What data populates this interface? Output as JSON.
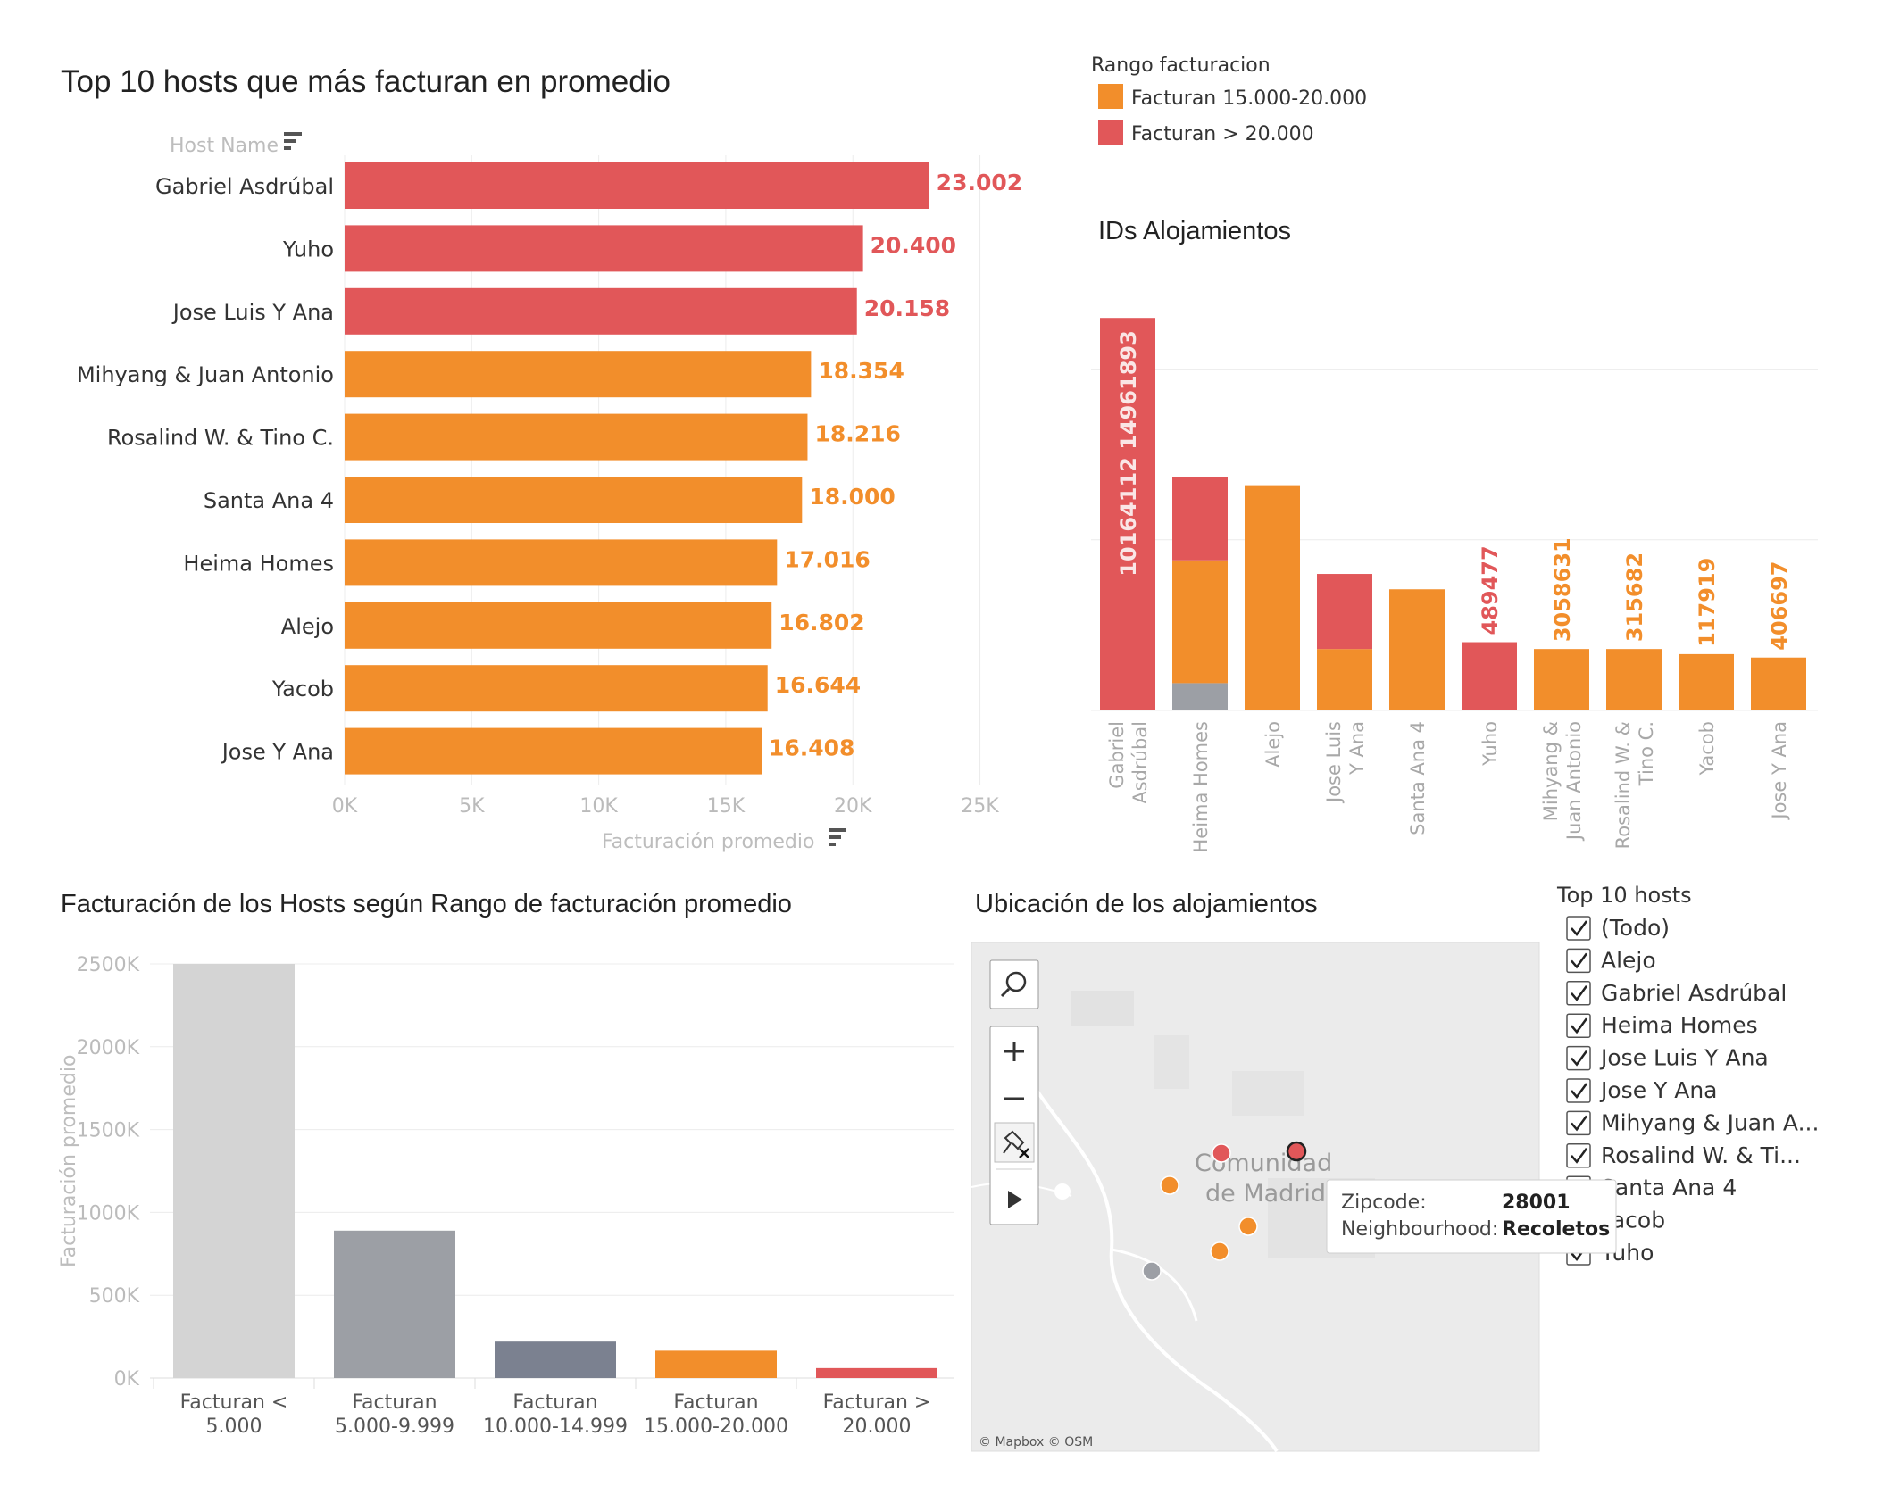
{
  "colors": {
    "range_15_20": "#f28e2b",
    "range_gt20": "#e15759",
    "range_lt5": "#d4d4d4",
    "range_5_10": "#9c9fa5",
    "range_10_15": "#7b8190"
  },
  "top_hosts": {
    "title": "Top 10 hosts que más facturan en promedio",
    "dim_label": "Host Name",
    "measure_label": "Facturación promedio",
    "sort_icon": "sort-icon"
  },
  "legend": {
    "title": "Rango facturacion",
    "items": [
      {
        "label": "Facturan 15.000-20.000",
        "color": "#f28e2b"
      },
      {
        "label": "Facturan > 20.000",
        "color": "#e15759"
      }
    ]
  },
  "ids_chart": {
    "title": "IDs Alojamientos"
  },
  "range_chart": {
    "title": "Facturación de los Hosts según Rango de facturación promedio"
  },
  "map": {
    "title": "Ubicación de los alojamientos",
    "city_line1": "Comunidad",
    "city_line2": "de Madrid",
    "attribution": "© Mapbox © OSM",
    "tooltip": {
      "k1": "Zipcode:",
      "v1": "28001",
      "k2": "Neighbourhood:",
      "v2": "Recoletos"
    },
    "icons": [
      "search-icon",
      "zoom-in-icon",
      "zoom-out-icon",
      "pin-clear-icon",
      "play-icon"
    ]
  },
  "filter": {
    "title": "Top 10 hosts",
    "items": [
      "(Todo)",
      "Alejo",
      "Gabriel Asdrúbal",
      "Heima Homes",
      "Jose Luis Y Ana",
      "Jose Y Ana",
      "Mihyang & Juan A...",
      "Rosalind W.  & Ti...",
      "Santa Ana 4",
      "Yacob",
      "Yuho"
    ]
  },
  "chart_data": [
    {
      "type": "bar",
      "orientation": "horizontal",
      "title": "Top 10 hosts que más facturan en promedio",
      "ylabel": "Host Name",
      "xlabel": "Facturación promedio",
      "categories": [
        "Gabriel Asdrúbal",
        "Yuho",
        "Jose Luis Y Ana",
        "Mihyang & Juan Antonio",
        "Rosalind W.  & Tino C.",
        "Santa Ana 4",
        "Heima Homes",
        "Alejo",
        "Yacob",
        "Jose Y Ana"
      ],
      "values": [
        23002,
        20400,
        20158,
        18354,
        18216,
        18000,
        17016,
        16802,
        16644,
        16408
      ],
      "value_labels": [
        "23.002",
        "20.400",
        "20.158",
        "18.354",
        "18.216",
        "18.000",
        "17.016",
        "16.802",
        "16.644",
        "16.408"
      ],
      "range": [
        "gt20",
        "gt20",
        "gt20",
        "15_20",
        "15_20",
        "15_20",
        "15_20",
        "15_20",
        "15_20",
        "15_20"
      ],
      "xlim": [
        0,
        26000
      ],
      "xticks": [
        0,
        5000,
        10000,
        15000,
        20000,
        25000
      ],
      "xtick_labels": [
        "0K",
        "5K",
        "10K",
        "15K",
        "20K",
        "25K"
      ],
      "grid": true
    },
    {
      "type": "bar",
      "stacked": true,
      "title": "IDs Alojamientos",
      "categories": [
        "Gabriel Asdrúbal",
        "Heima Homes",
        "Alejo",
        "Jose Luis Y Ana",
        "Santa Ana 4",
        "Yuho",
        "Mihyang & Juan Antonio",
        "Rosalind W. & Tino C.",
        "Yacob",
        "Jose Y Ana"
      ],
      "segments": [
        [
          {
            "range": "gt20",
            "value": 23002
          }
        ],
        [
          {
            "range": "5_10",
            "value": 1600
          },
          {
            "range": "15_20",
            "value": 7200
          },
          {
            "range": "gt20",
            "value": 4900
          }
        ],
        [
          {
            "range": "15_20",
            "value": 13200
          }
        ],
        [
          {
            "range": "15_20",
            "value": 3600
          },
          {
            "range": "gt20",
            "value": 4400
          }
        ],
        [
          {
            "range": "15_20",
            "value": 7100
          }
        ],
        [
          {
            "range": "gt20",
            "value": 4000
          }
        ],
        [
          {
            "range": "15_20",
            "value": 3600
          }
        ],
        [
          {
            "range": "15_20",
            "value": 3600
          }
        ],
        [
          {
            "range": "15_20",
            "value": 3300
          }
        ],
        [
          {
            "range": "15_20",
            "value": 3100
          }
        ]
      ],
      "bar_labels": [
        "10164112 14961893",
        "",
        "",
        "",
        "",
        "489477",
        "3058631",
        "315682",
        "117919",
        "406697"
      ],
      "ylim": [
        0,
        25000
      ],
      "grid": true
    },
    {
      "type": "bar",
      "title": "Facturación de los Hosts según Rango de facturación promedio",
      "ylabel": "Facturación promedio",
      "categories": [
        "Facturan < 5.000",
        "Facturan 5.000-9.999",
        "Facturan 10.000-14.999",
        "Facturan 15.000-20.000",
        "Facturan > 20.000"
      ],
      "category_lines": [
        [
          "Facturan <",
          "5.000"
        ],
        [
          "Facturan",
          "5.000-9.999"
        ],
        [
          "Facturan",
          "10.000-14.999"
        ],
        [
          "Facturan",
          "15.000-20.000"
        ],
        [
          "Facturan >",
          "20.000"
        ]
      ],
      "values": [
        2500000,
        890000,
        220000,
        165000,
        60000
      ],
      "range": [
        "lt5",
        "5_10",
        "10_15",
        "15_20",
        "gt20"
      ],
      "ylim": [
        0,
        2500000
      ],
      "yticks": [
        0,
        500000,
        1000000,
        1500000,
        2000000,
        2500000
      ],
      "ytick_labels": [
        "0K",
        "500K",
        "1000K",
        "1500K",
        "2000K",
        "2500K"
      ],
      "grid": true
    }
  ],
  "map_points": [
    {
      "range": "gt20",
      "selected": true
    },
    {
      "range": "gt20",
      "selected": false
    },
    {
      "range": "15_20",
      "selected": false
    },
    {
      "range": "15_20",
      "selected": false
    },
    {
      "range": "15_20",
      "selected": false
    },
    {
      "range": "5_10",
      "selected": false
    }
  ]
}
